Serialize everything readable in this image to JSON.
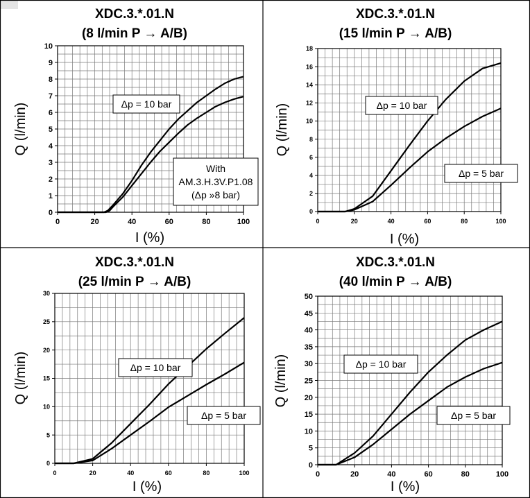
{
  "chart_data": [
    {
      "type": "line",
      "title": "XDC.3.*.01.N",
      "subtitle": "(8 l/min P → A/B)",
      "xlabel": "I (%)",
      "ylabel": "Q (l/min)",
      "xlim": [
        0,
        100
      ],
      "ylim": [
        0,
        10
      ],
      "xticks": [
        "0",
        "20",
        "40",
        "60",
        "80",
        "100"
      ],
      "yticks": [
        "0",
        "1",
        "2",
        "3",
        "4",
        "5",
        "6",
        "7",
        "8",
        "9",
        "10"
      ],
      "grid": true,
      "series": [
        {
          "x": [
            0,
            25,
            27,
            30,
            35,
            40,
            45,
            50,
            55,
            60,
            65,
            70,
            75,
            80,
            85,
            90,
            95,
            100
          ],
          "y": [
            0,
            0,
            0.1,
            0.45,
            1.1,
            1.9,
            2.8,
            3.6,
            4.3,
            5.0,
            5.6,
            6.1,
            6.6,
            7.0,
            7.4,
            7.75,
            8.0,
            8.15
          ]
        },
        {
          "x": [
            0,
            26,
            28,
            30,
            35,
            40,
            45,
            50,
            55,
            60,
            65,
            70,
            75,
            80,
            85,
            90,
            95,
            100
          ],
          "y": [
            0,
            0,
            0.1,
            0.35,
            0.9,
            1.6,
            2.3,
            3.0,
            3.65,
            4.2,
            4.75,
            5.25,
            5.65,
            6.0,
            6.35,
            6.6,
            6.8,
            6.95
          ]
        }
      ],
      "annotations": [
        {
          "lines": [
            "Δp = 10 bar"
          ]
        },
        {
          "lines": [
            "With",
            "AM.3.H.3V.P1.08",
            "(Δp »8 bar)"
          ]
        }
      ]
    },
    {
      "type": "line",
      "title": "XDC.3.*.01.N",
      "subtitle": "(15 l/min P → A/B)",
      "xlabel": "I (%)",
      "ylabel": "Q (l/min)",
      "xlim": [
        0,
        100
      ],
      "ylim": [
        0,
        18
      ],
      "xticks": [
        "0",
        "20",
        "40",
        "60",
        "80",
        "100"
      ],
      "yticks": [
        "0",
        "2",
        "4",
        "6",
        "8",
        "10",
        "12",
        "14",
        "16",
        "18"
      ],
      "grid": true,
      "series": [
        {
          "x": [
            0,
            15,
            20,
            30,
            40,
            50,
            60,
            70,
            80,
            90,
            100
          ],
          "y": [
            0,
            0,
            0.3,
            1.7,
            4.5,
            7.3,
            10.0,
            12.4,
            14.4,
            15.8,
            16.4
          ]
        },
        {
          "x": [
            0,
            15,
            20,
            30,
            40,
            50,
            60,
            70,
            80,
            90,
            100
          ],
          "y": [
            0,
            0,
            0.2,
            1.1,
            2.9,
            4.8,
            6.6,
            8.1,
            9.4,
            10.5,
            11.4
          ]
        }
      ],
      "annotations": [
        {
          "lines": [
            "Δp = 10 bar"
          ]
        },
        {
          "lines": [
            "Δp = 5 bar"
          ]
        }
      ]
    },
    {
      "type": "line",
      "title": "XDC.3.*.01.N",
      "subtitle": "(25 l/min P → A/B)",
      "xlabel": "I (%)",
      "ylabel": "Q (l/min)",
      "xlim": [
        0,
        100
      ],
      "ylim": [
        0,
        30
      ],
      "xticks": [
        "0",
        "20",
        "40",
        "60",
        "80",
        "100"
      ],
      "yticks": [
        "0",
        "5",
        "10",
        "15",
        "20",
        "25",
        "30"
      ],
      "grid": true,
      "series": [
        {
          "x": [
            0,
            10,
            20,
            30,
            40,
            50,
            60,
            70,
            80,
            90,
            100
          ],
          "y": [
            0,
            0,
            0.8,
            3.6,
            7.0,
            10.4,
            14.0,
            17.1,
            20.2,
            23.0,
            25.7
          ]
        },
        {
          "x": [
            0,
            10,
            20,
            30,
            40,
            50,
            60,
            70,
            80,
            90,
            100
          ],
          "y": [
            0,
            0,
            0.5,
            2.6,
            5.0,
            7.4,
            9.9,
            11.9,
            13.9,
            15.8,
            17.8
          ]
        }
      ],
      "annotations": [
        {
          "lines": [
            "Δp = 10 bar"
          ]
        },
        {
          "lines": [
            "Δp = 5 bar"
          ]
        }
      ]
    },
    {
      "type": "line",
      "title": "XDC.3.*.01.N",
      "subtitle": "(40 l/min P → A/B)",
      "xlabel": "I (%)",
      "ylabel": "Q (l/min)",
      "xlim": [
        0,
        100
      ],
      "ylim": [
        0,
        50
      ],
      "xticks": [
        "0",
        "20",
        "40",
        "60",
        "80",
        "100"
      ],
      "yticks": [
        "0",
        "5",
        "10",
        "15",
        "20",
        "25",
        "30",
        "35",
        "40",
        "45",
        "50"
      ],
      "grid": true,
      "series": [
        {
          "x": [
            0,
            10,
            20,
            30,
            40,
            50,
            60,
            70,
            80,
            90,
            100
          ],
          "y": [
            0,
            0,
            3.5,
            8.5,
            15.0,
            21.5,
            27.5,
            32.5,
            37.0,
            40.0,
            42.5
          ]
        },
        {
          "x": [
            0,
            10,
            20,
            30,
            40,
            50,
            60,
            70,
            80,
            90,
            100
          ],
          "y": [
            0,
            0,
            2.2,
            6.0,
            10.5,
            15.0,
            19.0,
            23.0,
            26.0,
            28.5,
            30.3
          ]
        }
      ],
      "annotations": [
        {
          "lines": [
            "Δp = 10 bar"
          ]
        },
        {
          "lines": [
            "Δp = 5 bar"
          ]
        }
      ]
    }
  ]
}
